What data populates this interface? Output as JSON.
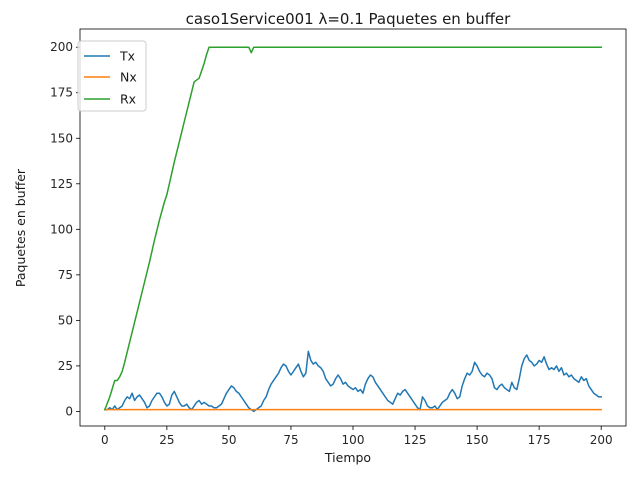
{
  "chart_data": {
    "type": "line",
    "title": "caso1Service001 λ=0.1 Paquetes en buffer",
    "xlabel": "Tiempo",
    "ylabel": "Paquetes en buffer",
    "xlim": [
      -10,
      210
    ],
    "ylim": [
      -8,
      210
    ],
    "xticks": [
      0,
      25,
      50,
      75,
      100,
      125,
      150,
      175,
      200
    ],
    "yticks": [
      0,
      25,
      50,
      75,
      100,
      125,
      150,
      175,
      200
    ],
    "grid": false,
    "legend_position": "top-left",
    "series": [
      {
        "name": "Tx",
        "color": "#1f77b4",
        "x": [
          0,
          1,
          2,
          3,
          4,
          5,
          6,
          7,
          8,
          9,
          10,
          11,
          12,
          13,
          14,
          15,
          16,
          17,
          18,
          19,
          20,
          21,
          22,
          23,
          24,
          25,
          26,
          27,
          28,
          29,
          30,
          31,
          32,
          33,
          34,
          35,
          36,
          37,
          38,
          39,
          40,
          41,
          42,
          43,
          44,
          45,
          46,
          47,
          48,
          49,
          50,
          51,
          52,
          53,
          54,
          55,
          56,
          57,
          58,
          59,
          60,
          61,
          62,
          63,
          64,
          65,
          66,
          67,
          68,
          69,
          70,
          71,
          72,
          73,
          74,
          75,
          76,
          77,
          78,
          79,
          80,
          81,
          82,
          83,
          84,
          85,
          86,
          87,
          88,
          89,
          90,
          91,
          92,
          93,
          94,
          95,
          96,
          97,
          98,
          99,
          100,
          101,
          102,
          103,
          104,
          105,
          106,
          107,
          108,
          109,
          110,
          111,
          112,
          113,
          114,
          115,
          116,
          117,
          118,
          119,
          120,
          121,
          122,
          123,
          124,
          125,
          126,
          127,
          128,
          129,
          130,
          131,
          132,
          133,
          134,
          135,
          136,
          137,
          138,
          139,
          140,
          141,
          142,
          143,
          144,
          145,
          146,
          147,
          148,
          149,
          150,
          151,
          152,
          153,
          154,
          155,
          156,
          157,
          158,
          159,
          160,
          161,
          162,
          163,
          164,
          165,
          166,
          167,
          168,
          169,
          170,
          171,
          172,
          173,
          174,
          175,
          176,
          177,
          178,
          179,
          180,
          181,
          182,
          183,
          184,
          185,
          186,
          187,
          188,
          189,
          190,
          191,
          192,
          193,
          194,
          195,
          196,
          197,
          198,
          199,
          200
        ],
        "values": [
          1,
          1,
          2,
          1,
          3,
          1,
          2,
          3,
          6,
          8,
          7,
          10,
          6,
          8,
          9,
          7,
          5,
          2,
          3,
          6,
          8,
          10,
          10,
          8,
          5,
          3,
          4,
          9,
          11,
          8,
          5,
          3,
          3,
          4,
          2,
          1,
          3,
          5,
          6,
          4,
          5,
          4,
          3,
          3,
          2,
          2,
          3,
          4,
          7,
          10,
          12,
          14,
          13,
          11,
          10,
          8,
          6,
          4,
          2,
          1,
          0,
          1,
          2,
          3,
          6,
          8,
          12,
          15,
          17,
          19,
          21,
          24,
          26,
          25,
          22,
          20,
          22,
          24,
          26,
          22,
          19,
          21,
          33,
          28,
          26,
          27,
          25,
          24,
          22,
          18,
          16,
          14,
          15,
          18,
          20,
          18,
          15,
          16,
          14,
          13,
          12,
          13,
          11,
          12,
          10,
          15,
          18,
          20,
          19,
          16,
          14,
          12,
          10,
          8,
          6,
          5,
          4,
          7,
          10,
          9,
          11,
          12,
          10,
          8,
          6,
          4,
          2,
          1,
          8,
          6,
          3,
          2,
          2,
          3,
          1,
          3,
          5,
          6,
          7,
          10,
          12,
          10,
          7,
          8,
          14,
          18,
          21,
          20,
          22,
          27,
          25,
          22,
          20,
          19,
          21,
          20,
          18,
          13,
          12,
          14,
          15,
          13,
          12,
          11,
          16,
          13,
          12,
          18,
          25,
          29,
          31,
          28,
          27,
          25,
          26,
          28,
          27,
          30,
          26,
          23,
          24,
          23,
          25,
          22,
          24,
          20,
          21,
          19,
          20,
          18,
          17,
          16,
          19,
          17,
          18,
          14,
          12,
          10,
          9,
          8,
          8
        ]
      },
      {
        "name": "Nx",
        "color": "#ff7f0e",
        "x": [
          0,
          200
        ],
        "values": [
          1,
          1
        ]
      },
      {
        "name": "Rx",
        "color": "#2ca02c",
        "x": [
          0,
          2,
          4,
          5,
          6,
          7,
          8,
          10,
          12,
          14,
          16,
          18,
          20,
          22,
          24,
          25,
          26,
          28,
          30,
          32,
          34,
          36,
          38,
          39,
          40,
          41,
          42,
          43,
          58,
          59,
          60,
          200
        ],
        "values": [
          1,
          8,
          17,
          17,
          19,
          22,
          27,
          38,
          49,
          60,
          71,
          82,
          94,
          105,
          115,
          119,
          125,
          137,
          148,
          159,
          170,
          181,
          183,
          187,
          191,
          196,
          200,
          200,
          200,
          197,
          200,
          200
        ]
      }
    ]
  }
}
